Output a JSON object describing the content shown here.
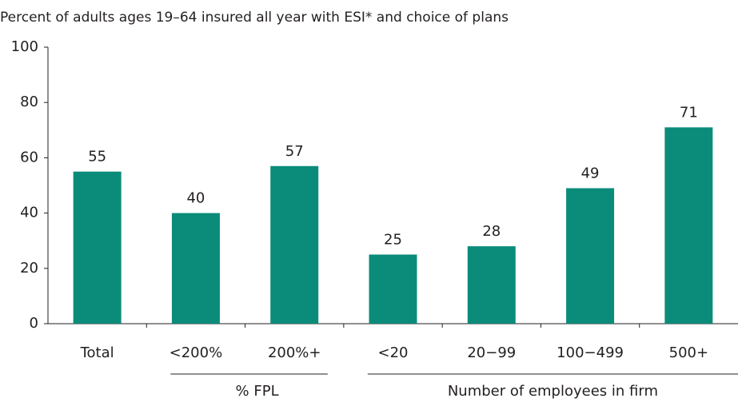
{
  "chart_data": {
    "type": "bar",
    "title": "Percent of adults ages 19–64 insured all year with ESI* and choice of plans",
    "categories": [
      "Total",
      "<200%",
      "200%+",
      "<20",
      "20−99",
      "100−499",
      "500+"
    ],
    "values": [
      55,
      40,
      57,
      25,
      28,
      49,
      71
    ],
    "color": "#0b8c7a",
    "ylim": [
      0,
      100
    ],
    "yticks": [
      0,
      20,
      40,
      60,
      80,
      100
    ],
    "grid": false,
    "group_labels": [
      "% FPL",
      "Number of employees in firm"
    ]
  }
}
